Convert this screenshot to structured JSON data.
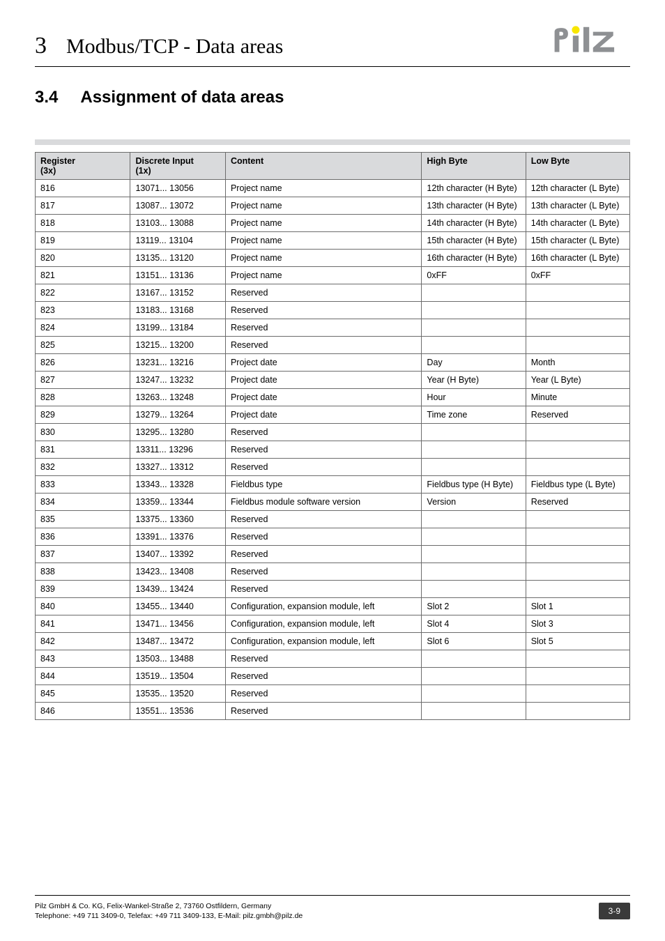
{
  "chapter": {
    "num": "3",
    "title": "Modbus/TCP - Data areas"
  },
  "section": {
    "num": "3.4",
    "title": "Assignment of data areas"
  },
  "logo": {
    "dot_color": "#f8e600",
    "text_color": "#8e9093"
  },
  "table": {
    "header_bg": "#d9dadc",
    "columns": [
      {
        "label_l1": "Register",
        "label_l2": "(3x)"
      },
      {
        "label_l1": "Discrete Input",
        "label_l2": "(1x)"
      },
      {
        "label_l1": "Content",
        "label_l2": ""
      },
      {
        "label_l1": "High Byte",
        "label_l2": ""
      },
      {
        "label_l1": "Low Byte",
        "label_l2": ""
      }
    ],
    "rows": [
      [
        "816",
        "13071... 13056",
        "Project name",
        "12th character (H Byte)",
        "12th character (L Byte)"
      ],
      [
        "817",
        "13087... 13072",
        "Project name",
        "13th character (H Byte)",
        "13th character (L Byte)"
      ],
      [
        "818",
        "13103... 13088",
        "Project name",
        "14th character (H Byte)",
        "14th character (L Byte)"
      ],
      [
        "819",
        "13119... 13104",
        "Project name",
        "15th character (H Byte)",
        "15th character (L Byte)"
      ],
      [
        "820",
        "13135... 13120",
        "Project name",
        "16th character (H Byte)",
        "16th character (L Byte)"
      ],
      [
        "821",
        "13151... 13136",
        "Project name",
        "0xFF",
        "0xFF"
      ],
      [
        "822",
        "13167... 13152",
        "Reserved",
        "",
        ""
      ],
      [
        "823",
        "13183... 13168",
        "Reserved",
        "",
        ""
      ],
      [
        "824",
        "13199... 13184",
        "Reserved",
        "",
        ""
      ],
      [
        "825",
        "13215... 13200",
        "Reserved",
        "",
        ""
      ],
      [
        "826",
        "13231... 13216",
        "Project date",
        "Day",
        "Month"
      ],
      [
        "827",
        "13247... 13232",
        "Project date",
        "Year (H Byte)",
        "Year (L Byte)"
      ],
      [
        "828",
        "13263... 13248",
        "Project date",
        "Hour",
        "Minute"
      ],
      [
        "829",
        "13279... 13264",
        "Project date",
        "Time zone",
        "Reserved"
      ],
      [
        "830",
        "13295... 13280",
        "Reserved",
        "",
        ""
      ],
      [
        "831",
        "13311... 13296",
        "Reserved",
        "",
        ""
      ],
      [
        "832",
        "13327... 13312",
        "Reserved",
        "",
        ""
      ],
      [
        "833",
        "13343... 13328",
        "Fieldbus type",
        "Fieldbus type (H Byte)",
        "Fieldbus type (L Byte)"
      ],
      [
        "834",
        "13359... 13344",
        "Fieldbus module software version",
        "Version",
        "Reserved"
      ],
      [
        "835",
        "13375... 13360",
        "Reserved",
        "",
        ""
      ],
      [
        "836",
        "13391... 13376",
        "Reserved",
        "",
        ""
      ],
      [
        "837",
        "13407... 13392",
        "Reserved",
        "",
        ""
      ],
      [
        "838",
        "13423... 13408",
        "Reserved",
        "",
        ""
      ],
      [
        "839",
        "13439... 13424",
        "Reserved",
        "",
        ""
      ],
      [
        "840",
        "13455... 13440",
        "Configuration, expansion module, left",
        "Slot 2",
        "Slot 1"
      ],
      [
        "841",
        "13471... 13456",
        "Configuration, expansion module, left",
        "Slot 4",
        "Slot 3"
      ],
      [
        "842",
        "13487... 13472",
        "Configuration, expansion module, left",
        "Slot 6",
        "Slot 5"
      ],
      [
        "843",
        "13503... 13488",
        "Reserved",
        "",
        ""
      ],
      [
        "844",
        "13519... 13504",
        "Reserved",
        "",
        ""
      ],
      [
        "845",
        "13535... 13520",
        "Reserved",
        "",
        ""
      ],
      [
        "846",
        "13551... 13536",
        "Reserved",
        "",
        ""
      ]
    ]
  },
  "footer": {
    "line1": "Pilz GmbH & Co. KG, Felix-Wankel-Straße 2, 73760 Ostfildern, Germany",
    "line2": "Telephone: +49 711 3409-0, Telefax: +49 711 3409-133, E-Mail: pilz.gmbh@pilz.de",
    "page": "3-9"
  }
}
